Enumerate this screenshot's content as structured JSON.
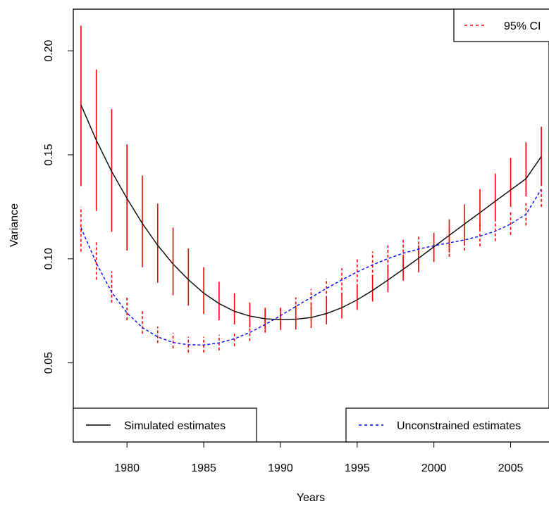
{
  "chart_data": {
    "type": "line",
    "title": "",
    "xlabel": "Years",
    "ylabel": "Variance",
    "xlim": [
      1976.5,
      2007.5
    ],
    "ylim": [
      0.012,
      0.22
    ],
    "x_ticks": [
      1980,
      1985,
      1990,
      1995,
      2000,
      2005
    ],
    "x_tick_labels": [
      "1980",
      "1985",
      "1990",
      "1995",
      "2000",
      "2005"
    ],
    "y_ticks": [
      0.05,
      0.1,
      0.15,
      0.2
    ],
    "y_tick_labels": [
      "0.05",
      "0.10",
      "0.15",
      "0.20"
    ],
    "grid": false,
    "x": [
      1977,
      1978,
      1979,
      1980,
      1981,
      1982,
      1983,
      1984,
      1985,
      1986,
      1987,
      1988,
      1989,
      1990,
      1991,
      1992,
      1993,
      1994,
      1995,
      1996,
      1997,
      1998,
      1999,
      2000,
      2001,
      2002,
      2003,
      2004,
      2005,
      2006,
      2007
    ],
    "series": [
      {
        "name": "Simulated estimates",
        "style": "solid",
        "color": "#000000",
        "values": [
          0.174,
          0.157,
          0.142,
          0.129,
          0.117,
          0.1065,
          0.0975,
          0.09,
          0.0835,
          0.0785,
          0.0748,
          0.0725,
          0.0712,
          0.0708,
          0.071,
          0.0718,
          0.0737,
          0.0765,
          0.0803,
          0.0848,
          0.0898,
          0.095,
          0.1003,
          0.1058,
          0.1113,
          0.1168,
          0.1222,
          0.1277,
          0.1331,
          0.1385,
          0.1492
        ]
      },
      {
        "name": "Unconstrained estimates",
        "style": "dashed",
        "color": "#0000ff",
        "values": [
          0.115,
          0.098,
          0.084,
          0.074,
          0.067,
          0.0625,
          0.0598,
          0.0587,
          0.0586,
          0.0596,
          0.0616,
          0.0646,
          0.0684,
          0.0727,
          0.0771,
          0.0815,
          0.0858,
          0.0899,
          0.0937,
          0.0971,
          0.1001,
          0.1027,
          0.1047,
          0.1063,
          0.1077,
          0.1091,
          0.1109,
          0.1133,
          0.1167,
          0.1214,
          0.1335
        ]
      }
    ],
    "ci_simulated": {
      "lower": [
        0.135,
        0.123,
        0.113,
        0.104,
        0.096,
        0.0885,
        0.0825,
        0.0775,
        0.0735,
        0.0705,
        0.0685,
        0.067,
        0.066,
        0.0658,
        0.066,
        0.0668,
        0.0685,
        0.0713,
        0.0755,
        0.0795,
        0.084,
        0.0895,
        0.0935,
        0.0985,
        0.103,
        0.1075,
        0.114,
        0.118,
        0.125,
        0.13,
        0.135
      ],
      "upper": [
        0.212,
        0.191,
        0.172,
        0.155,
        0.14,
        0.1265,
        0.115,
        0.105,
        0.096,
        0.089,
        0.0835,
        0.079,
        0.0765,
        0.0765,
        0.0775,
        0.0785,
        0.081,
        0.0835,
        0.0875,
        0.092,
        0.0965,
        0.101,
        0.1065,
        0.1125,
        0.119,
        0.1262,
        0.1335,
        0.141,
        0.1485,
        0.156,
        0.1635
      ]
    },
    "ci_unconstrained": {
      "lower": [
        0.1035,
        0.09,
        0.079,
        0.0705,
        0.064,
        0.0595,
        0.057,
        0.055,
        0.055,
        0.056,
        0.058,
        0.0605,
        0.0645,
        0.068,
        0.071,
        0.0755,
        0.0785,
        0.0825,
        0.0865,
        0.091,
        0.0935,
        0.096,
        0.0975,
        0.0985,
        0.101,
        0.104,
        0.106,
        0.1085,
        0.1115,
        0.116,
        0.125
      ],
      "upper": [
        0.125,
        0.108,
        0.094,
        0.082,
        0.0755,
        0.0675,
        0.0645,
        0.0625,
        0.0625,
        0.0635,
        0.065,
        0.0685,
        0.0725,
        0.0765,
        0.0815,
        0.0855,
        0.0905,
        0.0955,
        0.1,
        0.1035,
        0.1065,
        0.1095,
        0.1115,
        0.1125,
        0.1145,
        0.1155,
        0.1165,
        0.1195,
        0.1225,
        0.127,
        0.134
      ]
    },
    "legends": [
      {
        "label": "95% CI",
        "style": "dashed",
        "color": "#ff0000",
        "position": "top-right"
      },
      {
        "label": "Simulated estimates",
        "style": "solid",
        "color": "#000000",
        "position": "bottom-left"
      },
      {
        "label": "Unconstrained estimates",
        "style": "dashed",
        "color": "#0000ff",
        "position": "bottom-right"
      }
    ],
    "ci_color": "#ff0000"
  }
}
